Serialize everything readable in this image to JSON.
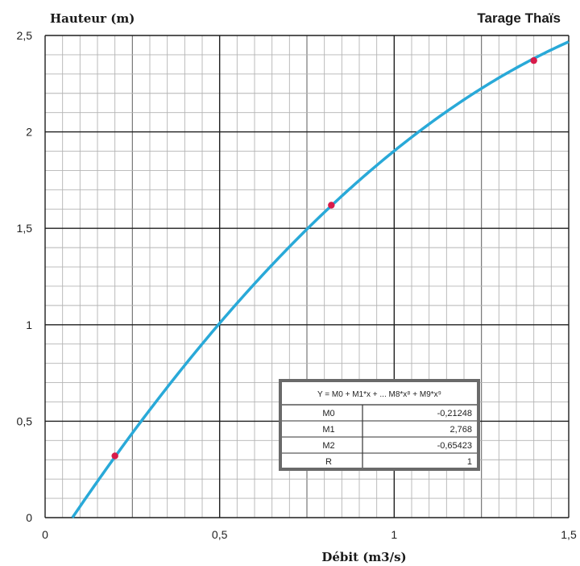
{
  "chart_data": {
    "type": "line",
    "title": "Tarage Thaïs",
    "xlabel": "Débit (m3/s)",
    "ylabel": "Hauteur (m)",
    "xlim": [
      0,
      1.5
    ],
    "ylim": [
      0,
      2.5
    ],
    "x_ticks": [
      {
        "value": 0,
        "label": "0"
      },
      {
        "value": 0.5,
        "label": "0,5"
      },
      {
        "value": 1,
        "label": "1"
      },
      {
        "value": 1.5,
        "label": "1,5"
      }
    ],
    "y_ticks": [
      {
        "value": 0,
        "label": "0"
      },
      {
        "value": 0.5,
        "label": "0,5"
      },
      {
        "value": 1,
        "label": "1"
      },
      {
        "value": 1.5,
        "label": "1,5"
      },
      {
        "value": 2,
        "label": "2"
      },
      {
        "value": 2.5,
        "label": "2,5"
      }
    ],
    "grid": true,
    "curve_color": "#29a9d8",
    "point_color": "#d81b4a",
    "fit": {
      "M0": -0.21248,
      "M1": 2.768,
      "M2": -0.65423
    },
    "points": [
      {
        "x": 0.2,
        "y": 0.32
      },
      {
        "x": 0.82,
        "y": 1.62
      },
      {
        "x": 1.4,
        "y": 2.37
      }
    ],
    "fit_table": {
      "equation": "Y = M0 + M1*x + ... M8*x⁸ + M9*x⁹",
      "rows": [
        {
          "name": "M0",
          "value": "-0,21248"
        },
        {
          "name": "M1",
          "value": "2,768"
        },
        {
          "name": "M2",
          "value": "-0,65423"
        },
        {
          "name": "R",
          "value": "1"
        }
      ]
    }
  }
}
